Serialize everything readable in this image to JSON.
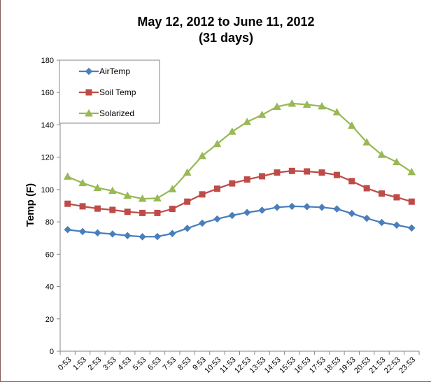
{
  "chart_data": {
    "type": "line",
    "title": "May 12, 2012 to June 11, 2012",
    "subtitle": "(31 days)",
    "xlabel": "",
    "ylabel": "Temp (F)",
    "ylim": [
      0,
      180
    ],
    "yticks": [
      0,
      20,
      40,
      60,
      80,
      100,
      120,
      140,
      160,
      180
    ],
    "grid": false,
    "legend_position": "top-left",
    "categories": [
      "0:53",
      "1:53",
      "2:53",
      "3:53",
      "4:53",
      "5:53",
      "6:53",
      "7:53",
      "8:53",
      "9:53",
      "10:53",
      "11:53",
      "12:53",
      "13:53",
      "14:53",
      "15:53",
      "16:53",
      "17:53",
      "18:53",
      "19:53",
      "20:53",
      "21:53",
      "22:53",
      "23:53"
    ],
    "series": [
      {
        "name": "AirTemp",
        "color": "#4a7ebb",
        "marker": "diamond",
        "values": [
          75.2,
          74.0,
          73.2,
          72.5,
          71.5,
          70.8,
          70.9,
          72.8,
          76.0,
          79.2,
          81.8,
          84.0,
          85.8,
          87.2,
          89.0,
          89.6,
          89.4,
          89.0,
          88.0,
          85.2,
          82.2,
          79.6,
          78.0,
          76.2
        ]
      },
      {
        "name": "Soil Temp",
        "color": "#be4b48",
        "marker": "square",
        "values": [
          91.2,
          89.6,
          88.2,
          87.4,
          86.2,
          85.5,
          85.5,
          88.0,
          92.5,
          97.0,
          100.5,
          103.8,
          106.2,
          108.2,
          110.5,
          111.5,
          111.2,
          110.5,
          109.0,
          105.2,
          100.8,
          97.5,
          95.2,
          92.5
        ]
      },
      {
        "name": "Solarized",
        "color": "#98b954",
        "marker": "triangle",
        "values": [
          108.0,
          104.0,
          101.0,
          99.2,
          96.2,
          94.3,
          94.6,
          100.2,
          110.5,
          120.8,
          128.2,
          135.8,
          141.8,
          146.2,
          151.2,
          153.2,
          152.5,
          151.5,
          147.8,
          139.5,
          129.2,
          121.5,
          117.0,
          110.8
        ]
      }
    ]
  }
}
